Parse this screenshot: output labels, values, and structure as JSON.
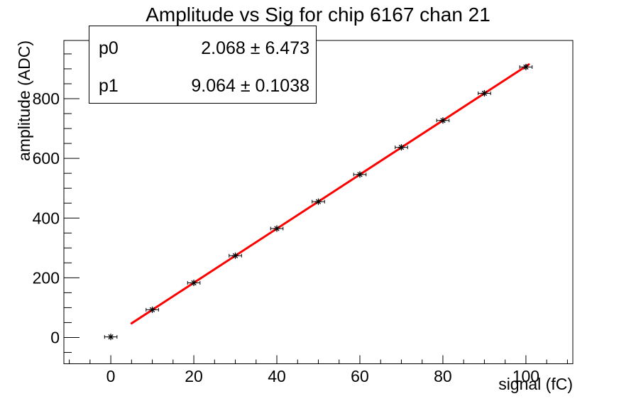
{
  "title": "Amplitude vs Sig for chip 6167 chan 21",
  "stats_box": {
    "rows": [
      {
        "param": "p0",
        "value": "2.068 ± 6.473"
      },
      {
        "param": "p1",
        "value": "9.064 ± 0.1038"
      }
    ]
  },
  "chart_data": {
    "type": "scatter",
    "title": "Amplitude vs Sig for chip 6167 chan 21",
    "xlabel": "signal (fC)",
    "ylabel": "amplitude (ADC)",
    "x": [
      0,
      10,
      20,
      30,
      40,
      50,
      60,
      70,
      80,
      90,
      100
    ],
    "y": [
      2,
      93,
      183,
      274,
      365,
      455,
      546,
      637,
      727,
      818,
      906
    ],
    "x_error": 1.5,
    "xlim": [
      -11.3,
      111.3
    ],
    "ylim": [
      -88,
      995
    ],
    "x_major_ticks": [
      0,
      20,
      40,
      60,
      80,
      100
    ],
    "x_minor_step": 5,
    "y_major_ticks": [
      0,
      200,
      400,
      600,
      800
    ],
    "y_minor_step": 50,
    "grid": false,
    "marker": {
      "style": "asterisk",
      "color": "#000000"
    },
    "fit": {
      "p0": 2.068,
      "p0_err": 6.473,
      "p1": 9.064,
      "p1_err": 0.1038,
      "range": [
        5,
        100.7
      ],
      "color": "#ff0000"
    },
    "axis_color": "#000000",
    "background": "#ffffff"
  }
}
